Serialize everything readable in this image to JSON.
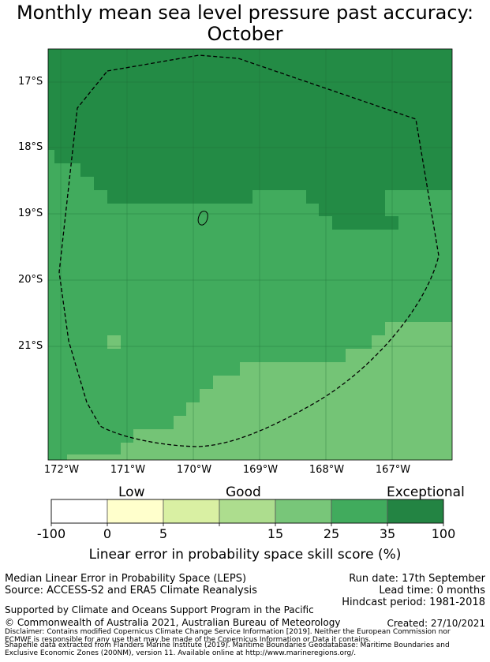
{
  "title": {
    "line1": "Monthly mean sea level pressure past accuracy:",
    "line2": "October"
  },
  "map": {
    "lat_labels": [
      "17°S",
      "18°S",
      "19°S",
      "20°S",
      "21°S"
    ],
    "lon_labels": [
      "172°W",
      "171°W",
      "170°W",
      "169°W",
      "168°W",
      "167°W"
    ],
    "colors": {
      "exceptional": "#238b45",
      "very_good": "#41ab5d",
      "good": "#74c476",
      "gridline": "#1f6b34"
    }
  },
  "legend": {
    "categories": [
      "Low",
      "Good",
      "Exceptional"
    ],
    "ticks": [
      "-100",
      "0",
      "5",
      "15",
      "25",
      "35",
      "100"
    ],
    "colors": [
      "#ffffff",
      "#ffffcc",
      "#d9f0a3",
      "#addd8e",
      "#78c679",
      "#41ab5d",
      "#238443"
    ],
    "label": "Linear error in probability space skill score (%)"
  },
  "info": {
    "method": "Median Linear Error in Probability Space (LEPS)",
    "source": "Source: ACCESS-S2 and ERA5 Climate Reanalysis",
    "run_date": "Run date: 17th September",
    "lead_time": "Lead time: 0 months",
    "hindcast": "Hindcast period: 1981-2018",
    "support": "Supported by Climate and Oceans Support Program in the Pacific",
    "copyright": "© Commonwealth of Australia 2021, Australian Bureau of Meteorology",
    "created": "Created: 27/10/2021",
    "disclaimer": "Disclaimer: Contains modified Copernicus Climate Change Service Information [2019]. Neither the European Commission nor ECMWF is responsible for any use that may be made of the Copernicus Information or Data it contains.",
    "shapefile": "Shapefile data extracted from Flanders Marine Institute (2019). Maritime Boundaries Geodatabase: Maritime Boundaries and Exclusive Economic Zones (200NM), version 11. Available online at http://www.marineregions.org/."
  }
}
